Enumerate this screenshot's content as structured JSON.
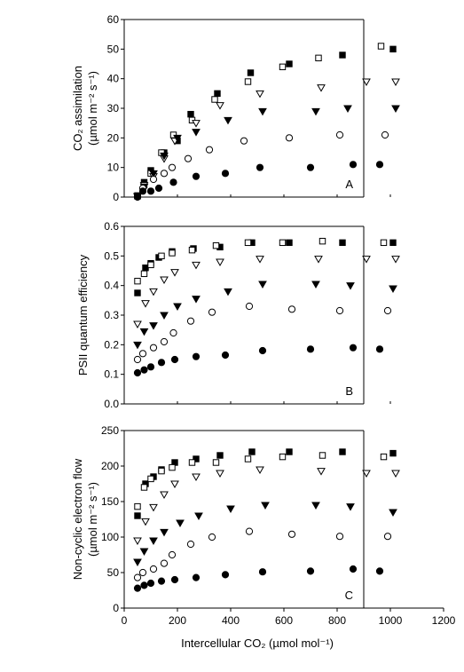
{
  "chart_data": [
    {
      "type": "scatter",
      "panel_label": "A",
      "ylabel_lines": [
        "CO₂ assimilation",
        "(µmol m⁻² s⁻¹)"
      ],
      "xlim": [
        0,
        1200
      ],
      "ylim": [
        0,
        60
      ],
      "yticks": [
        0,
        10,
        20,
        30,
        40,
        50,
        60
      ],
      "yticklabels": [
        "0",
        "10",
        "20",
        "30",
        "40",
        "50",
        "60"
      ],
      "series": [
        {
          "marker": "square-filled",
          "x": [
            50,
            75,
            100,
            150,
            200,
            250,
            350,
            475,
            620,
            820,
            1010
          ],
          "y": [
            0.5,
            5,
            9,
            15,
            19,
            28,
            35,
            42,
            45,
            48,
            50
          ]
        },
        {
          "marker": "square-open",
          "x": [
            50,
            75,
            100,
            140,
            185,
            255,
            340,
            465,
            595,
            730,
            965
          ],
          "y": [
            0.3,
            4,
            8,
            15,
            21,
            26,
            33,
            39,
            44,
            47,
            51
          ]
        },
        {
          "marker": "triangle-open",
          "x": [
            50,
            75,
            110,
            150,
            190,
            270,
            360,
            510,
            740,
            910,
            1020
          ],
          "y": [
            0.3,
            4,
            7,
            13,
            19,
            25,
            31,
            35,
            37,
            39,
            39
          ]
        },
        {
          "marker": "triangle-filled",
          "x": [
            50,
            75,
            110,
            150,
            200,
            270,
            390,
            520,
            720,
            840,
            1020
          ],
          "y": [
            0.2,
            3.5,
            8,
            14,
            20,
            22,
            26,
            29,
            29,
            30,
            30
          ]
        },
        {
          "marker": "circle-open",
          "x": [
            50,
            70,
            110,
            150,
            180,
            240,
            320,
            450,
            620,
            810,
            980
          ],
          "y": [
            0.2,
            3,
            6,
            8,
            10,
            13,
            16,
            19,
            20,
            21,
            21
          ]
        },
        {
          "marker": "circle-filled",
          "x": [
            50,
            70,
            100,
            130,
            185,
            270,
            380,
            510,
            700,
            860,
            960
          ],
          "y": [
            0,
            2,
            2,
            3,
            5,
            7,
            8,
            10,
            10,
            11,
            11
          ]
        }
      ]
    },
    {
      "type": "scatter",
      "panel_label": "B",
      "ylabel_lines": [
        "PSII quantum efficiency"
      ],
      "xlim": [
        0,
        1200
      ],
      "ylim": [
        0,
        0.6
      ],
      "yticks": [
        0,
        0.1,
        0.2,
        0.3,
        0.4,
        0.5,
        0.6
      ],
      "yticklabels": [
        "0.0",
        "0.1",
        "0.2",
        "0.3",
        "0.4",
        "0.5",
        "0.6"
      ],
      "series": [
        {
          "marker": "square-filled",
          "x": [
            50,
            80,
            100,
            130,
            180,
            260,
            360,
            480,
            620,
            820,
            1010
          ],
          "y": [
            0.375,
            0.46,
            0.475,
            0.495,
            0.515,
            0.525,
            0.53,
            0.545,
            0.545,
            0.545,
            0.545
          ]
        },
        {
          "marker": "square-open",
          "x": [
            50,
            75,
            100,
            140,
            180,
            255,
            345,
            465,
            595,
            745,
            975
          ],
          "y": [
            0.415,
            0.44,
            0.47,
            0.5,
            0.51,
            0.52,
            0.535,
            0.545,
            0.545,
            0.55,
            0.545
          ]
        },
        {
          "marker": "triangle-open",
          "x": [
            50,
            80,
            110,
            150,
            190,
            270,
            360,
            510,
            730,
            910,
            1020
          ],
          "y": [
            0.27,
            0.34,
            0.38,
            0.42,
            0.445,
            0.47,
            0.48,
            0.49,
            0.49,
            0.49,
            0.49
          ]
        },
        {
          "marker": "triangle-filled",
          "x": [
            50,
            75,
            110,
            150,
            200,
            270,
            390,
            520,
            720,
            850,
            1010
          ],
          "y": [
            0.2,
            0.245,
            0.265,
            0.3,
            0.33,
            0.355,
            0.38,
            0.405,
            0.405,
            0.4,
            0.39
          ]
        },
        {
          "marker": "circle-open",
          "x": [
            50,
            70,
            110,
            150,
            185,
            250,
            330,
            470,
            630,
            810,
            990
          ],
          "y": [
            0.15,
            0.17,
            0.19,
            0.21,
            0.24,
            0.28,
            0.31,
            0.33,
            0.32,
            0.315,
            0.315
          ]
        },
        {
          "marker": "circle-filled",
          "x": [
            50,
            75,
            100,
            140,
            190,
            270,
            380,
            520,
            700,
            860,
            960
          ],
          "y": [
            0.105,
            0.115,
            0.125,
            0.14,
            0.15,
            0.16,
            0.165,
            0.18,
            0.185,
            0.19,
            0.185
          ]
        }
      ]
    },
    {
      "type": "scatter",
      "panel_label": "C",
      "ylabel_lines": [
        "Non-cyclic electron flow",
        "(µmol m⁻² s⁻¹)"
      ],
      "xlabel": "Intercellular CO₂ (µmol mol⁻¹)",
      "xlim": [
        0,
        1200
      ],
      "ylim": [
        0,
        250
      ],
      "xticks": [
        0,
        200,
        400,
        600,
        800,
        1000,
        1200
      ],
      "xticklabels": [
        "0",
        "200",
        "400",
        "600",
        "800",
        "1000",
        "1200"
      ],
      "yticks": [
        0,
        50,
        100,
        150,
        200,
        250
      ],
      "yticklabels": [
        "0",
        "50",
        "100",
        "150",
        "200",
        "250"
      ],
      "series": [
        {
          "marker": "square-filled",
          "x": [
            50,
            80,
            110,
            140,
            190,
            270,
            360,
            480,
            620,
            820,
            1010
          ],
          "y": [
            130,
            175,
            185,
            195,
            205,
            210,
            215,
            220,
            220,
            220,
            218
          ]
        },
        {
          "marker": "square-open",
          "x": [
            50,
            75,
            100,
            140,
            180,
            255,
            345,
            465,
            595,
            745,
            975
          ],
          "y": [
            143,
            170,
            182,
            193,
            198,
            205,
            205,
            210,
            213,
            215,
            213
          ]
        },
        {
          "marker": "triangle-open",
          "x": [
            50,
            80,
            110,
            150,
            190,
            270,
            360,
            510,
            740,
            910,
            1020
          ],
          "y": [
            95,
            122,
            142,
            160,
            175,
            185,
            190,
            195,
            193,
            190,
            190
          ]
        },
        {
          "marker": "triangle-filled",
          "x": [
            50,
            75,
            110,
            150,
            210,
            280,
            400,
            530,
            720,
            850,
            1010
          ],
          "y": [
            65,
            80,
            95,
            107,
            120,
            130,
            140,
            145,
            145,
            143,
            135
          ]
        },
        {
          "marker": "circle-open",
          "x": [
            50,
            70,
            110,
            150,
            180,
            250,
            330,
            470,
            630,
            810,
            990
          ],
          "y": [
            43,
            50,
            55,
            63,
            75,
            90,
            100,
            108,
            104,
            101,
            101
          ]
        },
        {
          "marker": "circle-filled",
          "x": [
            50,
            75,
            100,
            140,
            190,
            270,
            380,
            520,
            700,
            860,
            960
          ],
          "y": [
            28,
            32,
            35,
            38,
            40,
            43,
            47,
            51,
            52,
            55,
            52
          ]
        }
      ]
    }
  ]
}
